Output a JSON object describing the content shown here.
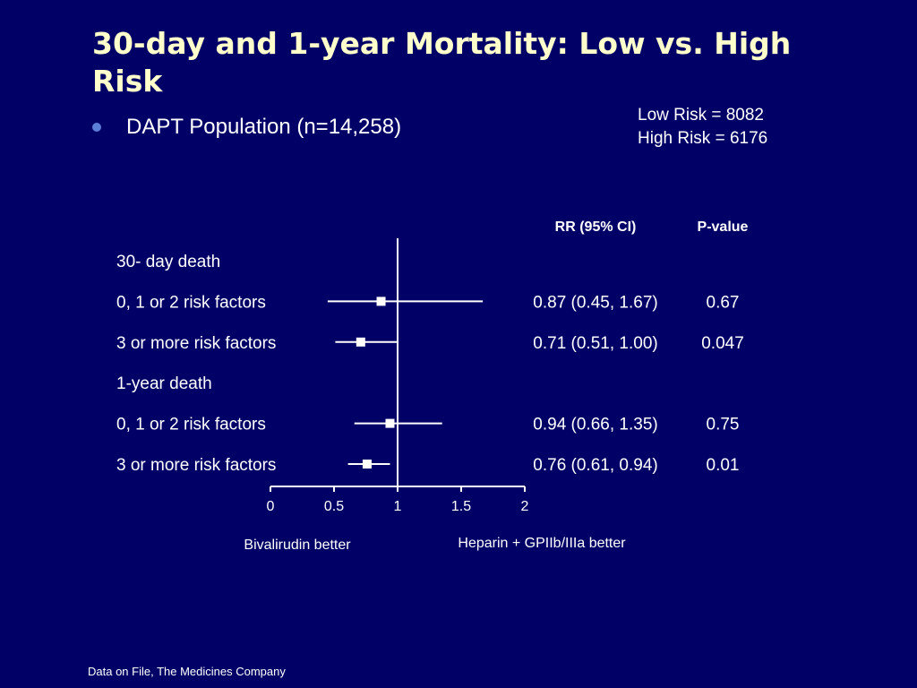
{
  "slide": {
    "title": "30-day and 1-year Mortality: Low vs. High Risk",
    "bullet": "DAPT Population (n=14,258)",
    "counts": [
      "Low Risk = 8082",
      "High Risk = 6176"
    ],
    "footer": "Data on File, The Medicines Company"
  },
  "colors": {
    "background": "#000066",
    "title": "#ffffcc",
    "bullet": "#5b7fd9",
    "text": "#ffffff"
  },
  "chart_data": {
    "type": "forest",
    "title": "",
    "columns": {
      "rr": "RR (95% CI)",
      "p": "P-value"
    },
    "xlim": [
      0,
      2
    ],
    "xticks": [
      0,
      0.5,
      1,
      1.5,
      2
    ],
    "xtick_labels": [
      "0",
      "0.5",
      "1",
      "1.5",
      "2"
    ],
    "reference_line": 1,
    "left_label": "Bivalirudin better",
    "right_label": "Heparin + GPIIb/IIIa better",
    "rows": [
      {
        "label": "30- day death",
        "header": true
      },
      {
        "label": "0, 1 or 2 risk factors",
        "rr": 0.87,
        "lo": 0.45,
        "hi": 1.67,
        "rr_text": "0.87 (0.45, 1.67)",
        "p": "0.67"
      },
      {
        "label": "3 or more risk factors",
        "rr": 0.71,
        "lo": 0.51,
        "hi": 1.0,
        "rr_text": "0.71 (0.51, 1.00)",
        "p": "0.047"
      },
      {
        "label": "1-year death",
        "header": true
      },
      {
        "label": "0, 1 or 2 risk factors",
        "rr": 0.94,
        "lo": 0.66,
        "hi": 1.35,
        "rr_text": "0.94 (0.66, 1.35)",
        "p": "0.75"
      },
      {
        "label": "3 or more risk factors",
        "rr": 0.76,
        "lo": 0.61,
        "hi": 0.94,
        "rr_text": "0.76 (0.61, 0.94)",
        "p": "0.01"
      }
    ]
  }
}
